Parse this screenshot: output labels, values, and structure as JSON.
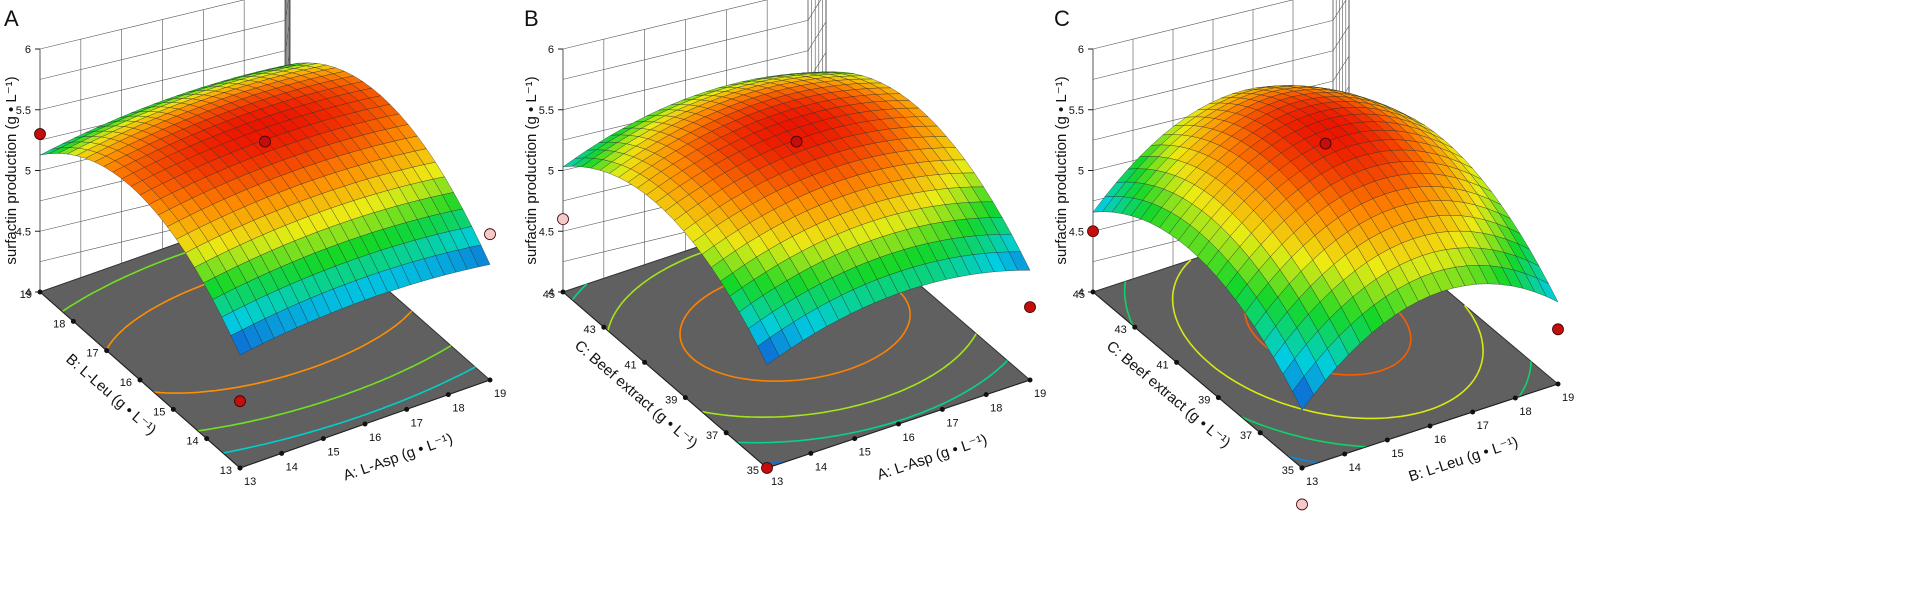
{
  "figure": {
    "panel_labels": [
      "A",
      "B",
      "C"
    ]
  },
  "chart_data": [
    {
      "type": "surface3d",
      "panel": "A",
      "zlabel": "surfactin production (g • L⁻¹)",
      "zlim": [
        4,
        6
      ],
      "zticks": [
        "4",
        "4.5",
        "5",
        "5.5",
        "6"
      ],
      "x": {
        "label": "A: L-Asp (g • L⁻¹)",
        "range": [
          13,
          19
        ],
        "ticks": [
          "13",
          "14",
          "15",
          "16",
          "17",
          "18",
          "19"
        ]
      },
      "y": {
        "label": "B: L-Leu (g • L⁻¹)",
        "range": [
          13,
          19
        ],
        "ticks": [
          "13",
          "14",
          "15",
          "16",
          "17",
          "18",
          "19"
        ]
      },
      "model": {
        "center_x": 16.2,
        "center_y": 16.3,
        "peak": 5.62,
        "curv_x": 0.009,
        "curv_y": 0.055
      },
      "contours": [
        5.5,
        5.3,
        5.1,
        4.9,
        4.7
      ],
      "design_points": [
        {
          "x": 16,
          "y": 16,
          "z": 5.6,
          "above": true
        },
        {
          "x": 13,
          "y": 19,
          "z": 5.3,
          "above": true
        },
        {
          "x": 13,
          "y": 13,
          "z": 4.55,
          "above": true
        },
        {
          "x": 19,
          "y": 13,
          "z": 5.2,
          "above": false
        }
      ]
    },
    {
      "type": "surface3d",
      "panel": "B",
      "zlabel": "surfactin production (g • L⁻¹)",
      "zlim": [
        4,
        6
      ],
      "zticks": [
        "4",
        "4.5",
        "5",
        "5.5",
        "6"
      ],
      "x": {
        "label": "A: L-Asp (g • L⁻¹)",
        "range": [
          13,
          19
        ],
        "ticks": [
          "13",
          "14",
          "15",
          "16",
          "17",
          "18",
          "19"
        ]
      },
      "y": {
        "label": "C: Beef extract (g • L⁻¹)",
        "range": [
          35,
          45
        ],
        "ticks": [
          "35",
          "37",
          "39",
          "41",
          "43",
          "45"
        ]
      },
      "model": {
        "center_x": 16.2,
        "center_y": 40.5,
        "peak": 5.62,
        "curv_x": 0.022,
        "curv_y": 0.05
      },
      "contours": [
        5.5,
        5.3,
        5.1,
        4.9,
        4.7,
        4.5
      ],
      "design_points": [
        {
          "x": 16,
          "y": 40,
          "z": 5.6,
          "above": true
        },
        {
          "x": 13,
          "y": 35,
          "z": 4.0,
          "above": true
        },
        {
          "x": 19,
          "y": 35,
          "z": 4.6,
          "above": true
        },
        {
          "x": 13,
          "y": 45,
          "z": 4.6,
          "above": false
        }
      ]
    },
    {
      "type": "surface3d",
      "panel": "C",
      "zlabel": "surfactin production (g • L⁻¹)",
      "zlim": [
        4,
        6
      ],
      "zticks": [
        "4",
        "4.5",
        "5",
        "5.5",
        "6"
      ],
      "x": {
        "label": "B: L-Leu (g • L⁻¹)",
        "range": [
          13,
          19
        ],
        "ticks": [
          "13",
          "14",
          "15",
          "16",
          "17",
          "18",
          "19"
        ]
      },
      "y": {
        "label": "C: Beef extract (g • L⁻¹)",
        "range": [
          35,
          45
        ],
        "ticks": [
          "35",
          "37",
          "39",
          "41",
          "43",
          "45"
        ]
      },
      "model": {
        "center_x": 16.3,
        "center_y": 40.5,
        "peak": 5.62,
        "curv_x": 0.055,
        "curv_y": 0.05
      },
      "contours": [
        5.5,
        5.2,
        4.9,
        4.6,
        4.3
      ],
      "design_points": [
        {
          "x": 16,
          "y": 40,
          "z": 5.6,
          "above": true
        },
        {
          "x": 13,
          "y": 35,
          "z": 3.7,
          "above": false
        },
        {
          "x": 19,
          "y": 35,
          "z": 4.45,
          "above": true
        },
        {
          "x": 13,
          "y": 45,
          "z": 4.5,
          "above": true
        }
      ]
    }
  ]
}
